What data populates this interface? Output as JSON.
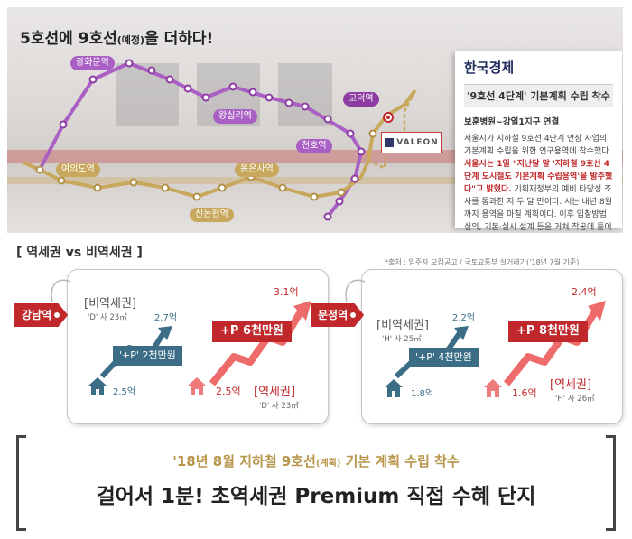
{
  "map": {
    "title_main_a": "5호선에 9호선",
    "title_small": "(예정)",
    "title_main_b": "을 더하다!",
    "stations": {
      "gwanghwamun": "광화문역",
      "wangsimni": "왕십리역",
      "cheonho": "천호역",
      "godeok": "고덕역",
      "yeouido": "여의도역",
      "bongeunsa": "봉은사역",
      "sinnonhyeon": "신논현역"
    },
    "brand": "VALEON"
  },
  "news": {
    "paper": "한국경제",
    "headline": "'9호선 4단계' 기본계획 수립 착수",
    "subhead": "보훈병원~강일1지구 연결",
    "body_a": "서울시가 지하철 9호선 4단계 연장 사업의 기본계획 수립을 위한 연구용역에 착수했다. ",
    "body_red": "서울시는 1일 \"지난달 말 '지하철 9호선 4단계 도시철도 기본계획 수립용역'을 발주했다\"고 밝혔다.",
    "body_b": " 기획재정부의 예비 타당성 조사를 통과한 지 두 달 만이다. 시는 내년 8월까지 용역을 마칠 계획이다. 이후 입찰방법 심의, 기본·실시 설계 등을 거쳐 착공에 들어간다."
  },
  "comparison": {
    "title": "[ 역세권 vs 비역세권 ]",
    "source": "*출처 : 입주자 모집공고 / 국토교통부 실거래가('18년 7월 기준)",
    "cards": [
      {
        "tag": "강남역",
        "non_station_label": "[비역세권]",
        "non_station_sub": "'D' 사 23㎡",
        "non_station_base": "2.5억",
        "non_station_top": "2.7억",
        "non_station_premium": "'+P' 2천만원",
        "station_label": "[역세권]",
        "station_sub": "'D' 사 23㎡",
        "station_base": "2.5억",
        "station_top": "3.1억",
        "station_premium": "+P 6천만원"
      },
      {
        "tag": "문정역",
        "non_station_label": "[비역세권]",
        "non_station_sub": "'H' 사 25㎡",
        "non_station_base": "1.8억",
        "non_station_top": "2.2억",
        "non_station_premium": "'+P' 4천만원",
        "station_label": "[역세권]",
        "station_sub": "'H' 사 26㎡",
        "station_base": "1.6억",
        "station_top": "2.4억",
        "station_premium": "+P 8천만원"
      }
    ]
  },
  "banner": {
    "line1_a": "'18년 8월 지하철 9호선",
    "line1_small": "(계획)",
    "line1_b": " 기본 계획 수립 착수",
    "line2": "걸어서 1분! 초역세권 Premium 직접 수혜 단지"
  },
  "colors": {
    "line5_purple": "#a95fc3",
    "line9_gold": "#c8a85c",
    "accent_red": "#c0282b",
    "teal_blue": "#3b6e86",
    "pink": "#ee7b7b"
  }
}
